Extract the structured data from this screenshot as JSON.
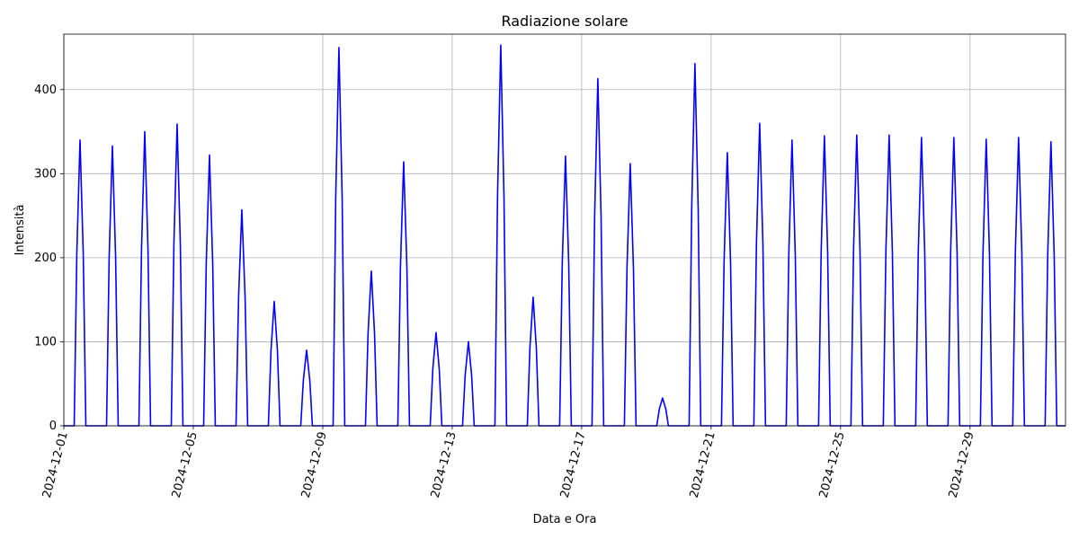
{
  "chart_data": {
    "type": "line",
    "title": "Radiazione solare",
    "x_label": "Data e Ora",
    "y_label": "Intensità",
    "color": "#0000ff",
    "grid": true,
    "xlim": [
      1,
      31.95
    ],
    "ylim": [
      0,
      466
    ],
    "xticks": [
      {
        "value": 1,
        "label": "2024-12-01"
      },
      {
        "value": 5,
        "label": "2024-12-05"
      },
      {
        "value": 9,
        "label": "2024-12-09"
      },
      {
        "value": 13,
        "label": "2024-12-13"
      },
      {
        "value": 17,
        "label": "2024-12-17"
      },
      {
        "value": 21,
        "label": "2024-12-21"
      },
      {
        "value": 25,
        "label": "2024-12-25"
      },
      {
        "value": 29,
        "label": "2024-12-29"
      }
    ],
    "yticks": [
      0,
      100,
      200,
      300,
      400
    ],
    "x": [
      1,
      1.32,
      1.4,
      1.5,
      1.6,
      1.68,
      2.32,
      2.4,
      2.5,
      2.6,
      2.68,
      3.32,
      3.4,
      3.5,
      3.6,
      3.68,
      4.32,
      4.4,
      4.5,
      4.6,
      4.68,
      5.32,
      5.4,
      5.5,
      5.6,
      5.68,
      6.32,
      6.4,
      6.5,
      6.6,
      6.68,
      7.32,
      7.4,
      7.5,
      7.6,
      7.68,
      8.32,
      8.4,
      8.5,
      8.6,
      8.68,
      9.32,
      9.4,
      9.5,
      9.6,
      9.68,
      10.32,
      10.4,
      10.5,
      10.6,
      10.68,
      11.32,
      11.4,
      11.5,
      11.6,
      11.68,
      12.32,
      12.4,
      12.5,
      12.6,
      12.68,
      13.32,
      13.4,
      13.5,
      13.6,
      13.68,
      14.32,
      14.4,
      14.5,
      14.6,
      14.68,
      15.32,
      15.4,
      15.5,
      15.6,
      15.68,
      16.32,
      16.4,
      16.5,
      16.6,
      16.68,
      17.32,
      17.4,
      17.5,
      17.6,
      17.68,
      18.32,
      18.4,
      18.5,
      18.6,
      18.68,
      19.32,
      19.4,
      19.5,
      19.6,
      19.68,
      20.32,
      20.4,
      20.5,
      20.6,
      20.68,
      21.32,
      21.4,
      21.5,
      21.6,
      21.68,
      22.32,
      22.4,
      22.5,
      22.6,
      22.68,
      23.32,
      23.4,
      23.5,
      23.6,
      23.68,
      24.32,
      24.4,
      24.5,
      24.6,
      24.68,
      25.32,
      25.4,
      25.5,
      25.6,
      25.68,
      26.32,
      26.4,
      26.5,
      26.6,
      26.68,
      27.32,
      27.4,
      27.5,
      27.6,
      27.68,
      28.32,
      28.4,
      28.5,
      28.6,
      28.68,
      29.32,
      29.4,
      29.5,
      29.6,
      29.68,
      30.32,
      30.4,
      30.5,
      30.6,
      30.68,
      31.32,
      31.4,
      31.5,
      31.6,
      31.68,
      31.95
    ],
    "values": [
      0,
      0,
      204,
      340,
      204,
      0,
      0,
      200,
      333,
      200,
      0,
      0,
      210,
      350,
      210,
      0,
      0,
      215,
      359,
      215,
      0,
      0,
      193,
      322,
      193,
      0,
      0,
      154,
      257,
      154,
      0,
      0,
      89,
      148,
      89,
      0,
      0,
      54,
      90,
      54,
      0,
      0,
      270,
      450,
      270,
      0,
      0,
      110,
      184,
      110,
      0,
      0,
      188,
      314,
      188,
      0,
      0,
      67,
      111,
      67,
      0,
      0,
      60,
      100,
      60,
      0,
      0,
      272,
      453,
      272,
      0,
      0,
      92,
      153,
      92,
      0,
      0,
      193,
      321,
      193,
      0,
      0,
      248,
      413,
      248,
      0,
      0,
      187,
      312,
      187,
      0,
      0,
      20,
      33,
      20,
      0,
      0,
      259,
      431,
      259,
      0,
      0,
      195,
      325,
      195,
      0,
      0,
      216,
      360,
      216,
      0,
      0,
      204,
      340,
      204,
      0,
      0,
      207,
      345,
      207,
      0,
      0,
      208,
      346,
      208,
      0,
      0,
      208,
      346,
      208,
      0,
      0,
      206,
      343,
      206,
      0,
      0,
      206,
      343,
      206,
      0,
      0,
      205,
      341,
      205,
      0,
      0,
      206,
      343,
      206,
      0,
      0,
      203,
      338,
      203,
      0,
      0
    ]
  }
}
